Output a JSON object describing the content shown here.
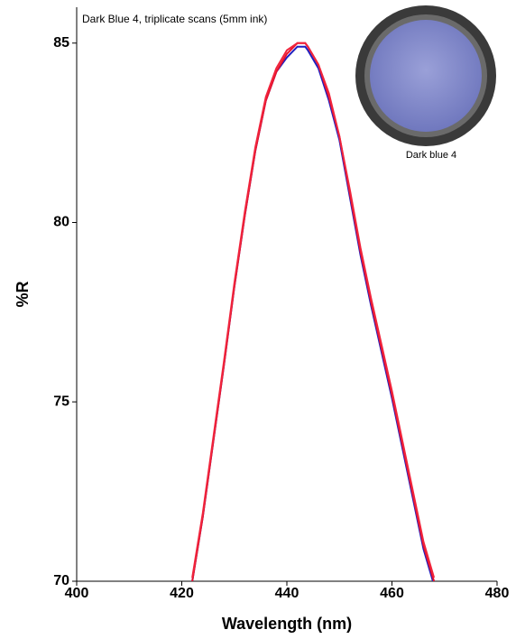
{
  "chart_data": {
    "type": "line",
    "title": "Dark Blue 4, triplicate scans (5mm ink)",
    "inset_caption": "Dark blue 4",
    "x_label": "Wavelength (nm)",
    "y_label": "%R",
    "x": [
      422,
      424,
      426,
      428,
      430,
      432,
      434,
      436,
      438,
      440,
      442,
      443.5,
      444,
      446,
      448,
      450,
      452,
      454,
      456,
      458,
      460,
      462,
      464,
      466,
      468
    ],
    "series": [
      {
        "color": "#1f1fbf",
        "values": [
          70.0,
          71.8,
          73.9,
          76.0,
          78.2,
          80.2,
          82.0,
          83.4,
          84.2,
          84.6,
          84.9,
          84.9,
          84.8,
          84.3,
          83.4,
          82.3,
          80.7,
          79.1,
          77.7,
          76.4,
          75.1,
          73.7,
          72.3,
          70.9,
          69.9
        ]
      },
      {
        "color": "#e8102a",
        "values": [
          70.0,
          71.8,
          73.9,
          76.0,
          78.2,
          80.2,
          82.0,
          83.4,
          84.2,
          84.7,
          85.0,
          85.0,
          84.9,
          84.4,
          83.5,
          82.4,
          80.8,
          79.2,
          77.8,
          76.5,
          75.2,
          73.8,
          72.4,
          71.0,
          70.0
        ]
      },
      {
        "color": "#f0243c",
        "values": [
          70.1,
          71.9,
          74.0,
          76.1,
          78.3,
          80.3,
          82.1,
          83.5,
          84.3,
          84.8,
          85.0,
          85.0,
          84.9,
          84.4,
          83.6,
          82.4,
          80.9,
          79.3,
          77.9,
          76.6,
          75.3,
          73.9,
          72.5,
          71.1,
          70.1
        ]
      }
    ],
    "xlim": [
      400,
      480
    ],
    "xticks": [
      400,
      420,
      440,
      460,
      480
    ],
    "ylim": [
      70,
      86
    ],
    "yticks": [
      70,
      75,
      80,
      85
    ]
  }
}
